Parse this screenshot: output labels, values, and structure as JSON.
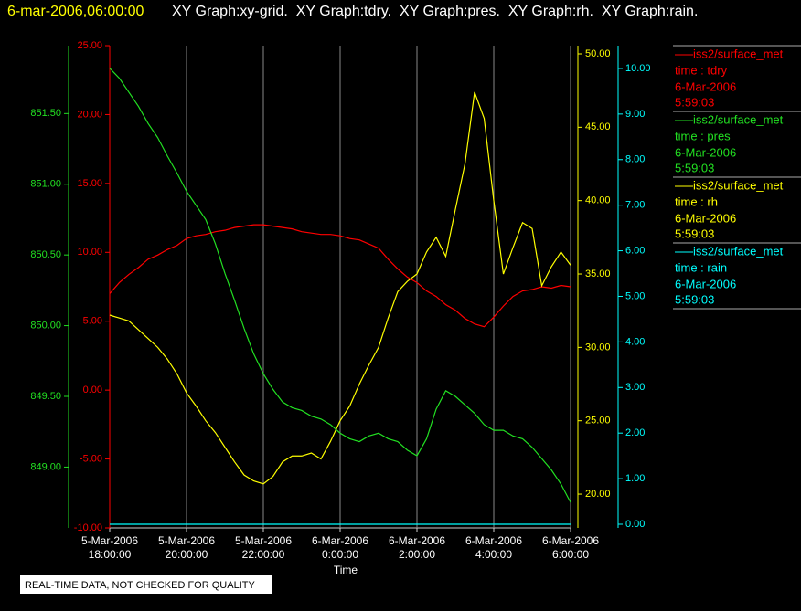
{
  "chart_data": {
    "type": "line",
    "timestamp": "6-mar-2006,06:00:00",
    "title": "XY Graph:xy-grid.  XY Graph:tdry.  XY Graph:pres.  XY Graph:rh.  XY Graph:rain.",
    "x_label": "Time",
    "note": "REAL-TIME DATA, NOT CHECKED FOR QUALITY",
    "grid": true,
    "xlim": [
      "2006-03-05 18:00:00",
      "2006-03-06 06:00:00"
    ],
    "xticks": [
      {
        "value": "2006-03-05 18:00:00",
        "label": [
          "5-Mar-2006",
          "18:00:00"
        ]
      },
      {
        "value": "2006-03-05 20:00:00",
        "label": [
          "5-Mar-2006",
          "20:00:00"
        ]
      },
      {
        "value": "2006-03-05 22:00:00",
        "label": [
          "5-Mar-2006",
          "22:00:00"
        ]
      },
      {
        "value": "2006-03-06 00:00:00",
        "label": [
          "6-Mar-2006",
          "0:00:00"
        ]
      },
      {
        "value": "2006-03-06 02:00:00",
        "label": [
          "6-Mar-2006",
          "2:00:00"
        ]
      },
      {
        "value": "2006-03-06 04:00:00",
        "label": [
          "6-Mar-2006",
          "4:00:00"
        ]
      },
      {
        "value": "2006-03-06 06:00:00",
        "label": [
          "6-Mar-2006",
          "6:00:00"
        ]
      }
    ],
    "ylim": [
      -10,
      25
    ],
    "yticks": [
      {
        "value": -10,
        "label": "-10.00"
      },
      {
        "value": -5,
        "label": "-5.00"
      },
      {
        "value": 0,
        "label": "0.00"
      },
      {
        "value": 5,
        "label": "5.00"
      },
      {
        "value": 10,
        "label": "10.00"
      },
      {
        "value": 15,
        "label": "15.00"
      },
      {
        "value": 20,
        "label": "20.00"
      },
      {
        "value": 25,
        "label": "25.00"
      }
    ],
    "y2lim": [
      848.57,
      851.98
    ],
    "y2ticks": [
      {
        "value": 849,
        "label": "849.00"
      },
      {
        "value": 849.5,
        "label": "849.50"
      },
      {
        "value": 850,
        "label": "850.00"
      },
      {
        "value": 850.5,
        "label": "850.50"
      },
      {
        "value": 851,
        "label": "851.00"
      },
      {
        "value": 851.5,
        "label": "851.50"
      }
    ],
    "y3lim": [
      17.7,
      50.56
    ],
    "y3ticks": [
      {
        "value": 20,
        "label": "20.00"
      },
      {
        "value": 25,
        "label": "25.00"
      },
      {
        "value": 30,
        "label": "30.00"
      },
      {
        "value": 35,
        "label": "35.00"
      },
      {
        "value": 40,
        "label": "40.00"
      },
      {
        "value": 45,
        "label": "45.00"
      },
      {
        "value": 50,
        "label": "50.00"
      }
    ],
    "y4lim": [
      -0.08,
      10.5
    ],
    "y4ticks": [
      {
        "value": 0,
        "label": "0.00"
      },
      {
        "value": 1,
        "label": "1.00"
      },
      {
        "value": 2,
        "label": "2.00"
      },
      {
        "value": 3,
        "label": "3.00"
      },
      {
        "value": 4,
        "label": "4.00"
      },
      {
        "value": 5,
        "label": "5.00"
      },
      {
        "value": 6,
        "label": "6.00"
      },
      {
        "value": 7,
        "label": "7.00"
      },
      {
        "value": 8,
        "label": "8.00"
      },
      {
        "value": 9,
        "label": "9.00"
      },
      {
        "value": 10,
        "label": "10.00"
      }
    ],
    "x": [
      "2006-03-05 18:00:00",
      "2006-03-05 18:15:00",
      "2006-03-05 18:30:00",
      "2006-03-05 18:45:00",
      "2006-03-05 19:00:00",
      "2006-03-05 19:15:00",
      "2006-03-05 19:30:00",
      "2006-03-05 19:45:00",
      "2006-03-05 20:00:00",
      "2006-03-05 20:15:00",
      "2006-03-05 20:30:00",
      "2006-03-05 20:45:00",
      "2006-03-05 21:00:00",
      "2006-03-05 21:15:00",
      "2006-03-05 21:30:00",
      "2006-03-05 21:45:00",
      "2006-03-05 22:00:00",
      "2006-03-05 22:15:00",
      "2006-03-05 22:30:00",
      "2006-03-05 22:45:00",
      "2006-03-05 23:00:00",
      "2006-03-05 23:15:00",
      "2006-03-05 23:30:00",
      "2006-03-05 23:45:00",
      "2006-03-06 00:00:00",
      "2006-03-06 00:15:00",
      "2006-03-06 00:30:00",
      "2006-03-06 00:45:00",
      "2006-03-06 01:00:00",
      "2006-03-06 01:15:00",
      "2006-03-06 01:30:00",
      "2006-03-06 01:45:00",
      "2006-03-06 02:00:00",
      "2006-03-06 02:15:00",
      "2006-03-06 02:30:00",
      "2006-03-06 02:45:00",
      "2006-03-06 03:00:00",
      "2006-03-06 03:15:00",
      "2006-03-06 03:30:00",
      "2006-03-06 03:45:00",
      "2006-03-06 04:00:00",
      "2006-03-06 04:15:00",
      "2006-03-06 04:30:00",
      "2006-03-06 04:45:00",
      "2006-03-06 05:00:00",
      "2006-03-06 05:15:00",
      "2006-03-06 05:30:00",
      "2006-03-06 05:45:00",
      "2006-03-06 06:00:00"
    ],
    "series": [
      {
        "name": "iss2/surface_met",
        "field": "time : tdry",
        "date": "6-Mar-2006",
        "time": "5:59:03",
        "color": "#ff0000",
        "axis": "y",
        "values": [
          7.0,
          7.8,
          8.4,
          8.9,
          9.5,
          9.8,
          10.2,
          10.5,
          11.0,
          11.2,
          11.3,
          11.5,
          11.6,
          11.8,
          11.9,
          12.0,
          12.0,
          11.9,
          11.8,
          11.7,
          11.5,
          11.4,
          11.3,
          11.3,
          11.2,
          11.0,
          10.9,
          10.6,
          10.3,
          9.5,
          8.8,
          8.2,
          7.8,
          7.2,
          6.8,
          6.2,
          5.8,
          5.2,
          4.8,
          4.6,
          5.3,
          6.1,
          6.8,
          7.2,
          7.3,
          7.5,
          7.4,
          7.6,
          7.5
        ]
      },
      {
        "name": "iss2/surface_met",
        "field": "time : pres",
        "date": "6-Mar-2006",
        "time": "5:59:03",
        "color": "#22e022",
        "axis": "y2",
        "values": [
          851.82,
          851.75,
          851.65,
          851.55,
          851.43,
          851.33,
          851.2,
          851.08,
          850.95,
          850.85,
          850.75,
          850.58,
          850.37,
          850.18,
          849.98,
          849.8,
          849.66,
          849.55,
          849.46,
          849.42,
          849.4,
          849.36,
          849.34,
          849.3,
          849.24,
          849.2,
          849.18,
          849.22,
          849.24,
          849.2,
          849.18,
          849.12,
          849.08,
          849.2,
          849.41,
          849.54,
          849.5,
          849.44,
          849.38,
          849.3,
          849.26,
          849.26,
          849.22,
          849.2,
          849.14,
          849.06,
          848.98,
          848.88,
          848.75
        ]
      },
      {
        "name": "iss2/surface_met",
        "field": "time : rh",
        "date": "6-Mar-2006",
        "time": "5:59:03",
        "color": "#ffff00",
        "axis": "y3",
        "values": [
          32.2,
          32.0,
          31.8,
          31.2,
          30.6,
          30.0,
          29.2,
          28.2,
          26.9,
          26.0,
          25.0,
          24.2,
          23.2,
          22.2,
          21.3,
          20.9,
          20.7,
          21.2,
          22.2,
          22.6,
          22.6,
          22.8,
          22.4,
          23.6,
          25.0,
          26.0,
          27.5,
          28.8,
          30.0,
          32.0,
          33.8,
          34.5,
          35.0,
          36.5,
          37.5,
          36.2,
          39.4,
          42.5,
          47.4,
          45.6,
          40.0,
          35.0,
          36.8,
          38.5,
          38.1,
          34.2,
          35.5,
          36.5,
          35.6
        ]
      },
      {
        "name": "iss2/surface_met",
        "field": "time : rain",
        "date": "6-Mar-2006",
        "time": "5:59:03",
        "color": "#00ffff",
        "axis": "y4",
        "values": [
          0,
          0,
          0,
          0,
          0,
          0,
          0,
          0,
          0,
          0,
          0,
          0,
          0,
          0,
          0,
          0,
          0,
          0,
          0,
          0,
          0,
          0,
          0,
          0,
          0,
          0,
          0,
          0,
          0,
          0,
          0,
          0,
          0,
          0,
          0,
          0,
          0,
          0,
          0,
          0,
          0,
          0,
          0,
          0,
          0,
          0,
          0,
          0,
          0
        ]
      }
    ]
  }
}
